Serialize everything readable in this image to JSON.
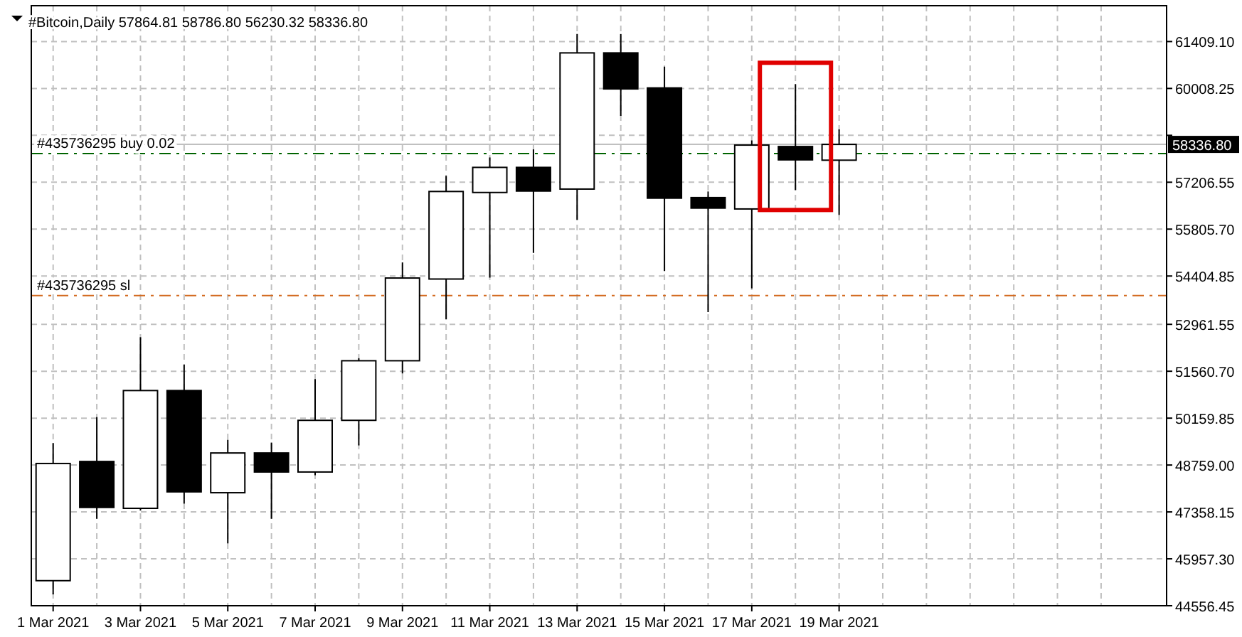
{
  "chart_data": {
    "type": "candlestick",
    "title": "#Bitcoin,Daily  57864.81 58786.80 56230.32 58336.80",
    "x": [
      "2021-03-01",
      "2021-03-02",
      "2021-03-03",
      "2021-03-04",
      "2021-03-05",
      "2021-03-06",
      "2021-03-07",
      "2021-03-08",
      "2021-03-09",
      "2021-03-10",
      "2021-03-11",
      "2021-03-12",
      "2021-03-13",
      "2021-03-14",
      "2021-03-15",
      "2021-03-16",
      "2021-03-17",
      "2021-03-18",
      "2021-03-19"
    ],
    "ohlc": [
      [
        45305,
        49416,
        44894,
        48805
      ],
      [
        48865,
        50191,
        47153,
        47492
      ],
      [
        47466,
        52577,
        47400,
        50984
      ],
      [
        50984,
        51759,
        47606,
        47958
      ],
      [
        47932,
        49513,
        46419,
        49119
      ],
      [
        49119,
        49429,
        47153,
        48551
      ],
      [
        48551,
        51323,
        48454,
        50094
      ],
      [
        50094,
        51950,
        49344,
        51874
      ],
      [
        51874,
        54811,
        51492,
        54345
      ],
      [
        54315,
        57396,
        53115,
        56930
      ],
      [
        56900,
        57947,
        54357,
        57650
      ],
      [
        57650,
        58188,
        55095,
        56943
      ],
      [
        57002,
        61634,
        56082,
        61070
      ],
      [
        61070,
        61634,
        59189,
        59994
      ],
      [
        60023,
        60659,
        54556,
        56731
      ],
      [
        56748,
        56930,
        53327,
        56434
      ],
      [
        56408,
        58455,
        54035,
        58316
      ],
      [
        58273,
        60138,
        56972,
        57875
      ],
      [
        57864.81,
        58786.8,
        56230.32,
        58336.8
      ]
    ],
    "colors": [
      "#ffffff",
      "#000000",
      "#ffffff",
      "#000000",
      "#ffffff",
      "#000000",
      "#ffffff",
      "#ffffff",
      "#ffffff",
      "#ffffff",
      "#ffffff",
      "#000000",
      "#ffffff",
      "#000000",
      "#000000",
      "#000000",
      "#ffffff",
      "#000000",
      "#ffffff"
    ],
    "xlim": [
      "2021-02-28T12:00",
      "2021-03-26T12:00"
    ],
    "xticks": [
      {
        "value": "2021-03-01",
        "label": "1 Mar 2021"
      },
      {
        "value": "2021-03-02",
        "label": null
      },
      {
        "value": "2021-03-03",
        "label": "3 Mar 2021"
      },
      {
        "value": "2021-03-04",
        "label": null
      },
      {
        "value": "2021-03-05",
        "label": "5 Mar 2021"
      },
      {
        "value": "2021-03-06",
        "label": null
      },
      {
        "value": "2021-03-07",
        "label": "7 Mar 2021"
      },
      {
        "value": "2021-03-08",
        "label": null
      },
      {
        "value": "2021-03-09",
        "label": "9 Mar 2021"
      },
      {
        "value": "2021-03-10",
        "label": null
      },
      {
        "value": "2021-03-11",
        "label": "11 Mar 2021"
      },
      {
        "value": "2021-03-12",
        "label": null
      },
      {
        "value": "2021-03-13",
        "label": "13 Mar 2021"
      },
      {
        "value": "2021-03-14",
        "label": null
      },
      {
        "value": "2021-03-15",
        "label": "15 Mar 2021"
      },
      {
        "value": "2021-03-16",
        "label": null
      },
      {
        "value": "2021-03-17",
        "label": "17 Mar 2021"
      },
      {
        "value": "2021-03-18",
        "label": null
      },
      {
        "value": "2021-03-19",
        "label": "19 Mar 2021"
      },
      {
        "value": "2021-03-20",
        "label": null
      },
      {
        "value": "2021-03-21",
        "label": null
      },
      {
        "value": "2021-03-22",
        "label": null
      },
      {
        "value": "2021-03-23",
        "label": null
      },
      {
        "value": "2021-03-24",
        "label": null
      },
      {
        "value": "2021-03-25",
        "label": null
      }
    ],
    "ylim": [
      44556.45,
      62480
    ],
    "yticks": [
      {
        "value": 44556.45,
        "label": "44556.45"
      },
      {
        "value": 45957.3,
        "label": "45957.30"
      },
      {
        "value": 47358.15,
        "label": "47358.15"
      },
      {
        "value": 48759,
        "label": "48759.00"
      },
      {
        "value": 50159.85,
        "label": "50159.85"
      },
      {
        "value": 51560.7,
        "label": "51560.70"
      },
      {
        "value": 52961.55,
        "label": "52961.55"
      },
      {
        "value": 54404.85,
        "label": "54404.85"
      },
      {
        "value": 55805.7,
        "label": "55805.70"
      },
      {
        "value": 57206.55,
        "label": "57206.55"
      },
      {
        "value": 58607.4,
        "label": null
      },
      {
        "value": 60008.25,
        "label": "60008.25"
      },
      {
        "value": 61409.1,
        "label": "61409.10"
      }
    ],
    "ref_lines": [
      {
        "axis": "y",
        "value": 58061,
        "label": "#435736295 buy 0.02",
        "color": "#006400",
        "line_style": "dashdot"
      },
      {
        "axis": "y",
        "value": 53823,
        "label": "#435736295 sl",
        "color": "#d2691e",
        "line_style": "dashdot"
      },
      {
        "axis": "y",
        "value": 58336.8,
        "label": "58336.80",
        "color": "#c0c0c0",
        "line_style": "solid"
      }
    ],
    "grid": true
  }
}
